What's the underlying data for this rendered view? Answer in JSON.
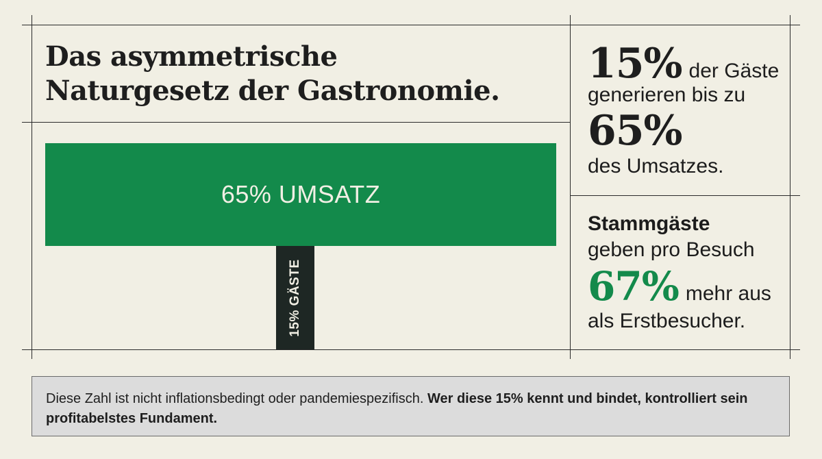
{
  "title": {
    "line1": "Das asymmetrische",
    "line2": "Naturgesetz der Gastronomie."
  },
  "chart_data": {
    "type": "bar",
    "categories": [
      "UMSATZ",
      "GÄSTE"
    ],
    "values": [
      65,
      15
    ],
    "labels": [
      "65% UMSATZ",
      "15% GÄSTE"
    ],
    "colors": [
      "#138a4b",
      "#1e2724"
    ]
  },
  "stat1": {
    "num1": "15%",
    "text1": "der Gäste",
    "text2": "generieren bis zu",
    "num2": "65%",
    "text3": "des Umsatzes."
  },
  "stat2": {
    "heading": "Stammgäste",
    "text1": "geben pro Besuch",
    "num": "67%",
    "text2": "mehr aus",
    "text3": "als Erstbesucher."
  },
  "footer": {
    "plain": "Diese Zahl ist nicht inflationsbedingt oder pandemiespezifisch.",
    "bold": "Wer diese 15% kennt und bindet, kontrolliert sein profitabelstes Fundament."
  },
  "colors": {
    "background": "#f1efe4",
    "accent_green": "#138a4b",
    "dark": "#1e2724",
    "footer_bg": "#dcdcdc"
  }
}
